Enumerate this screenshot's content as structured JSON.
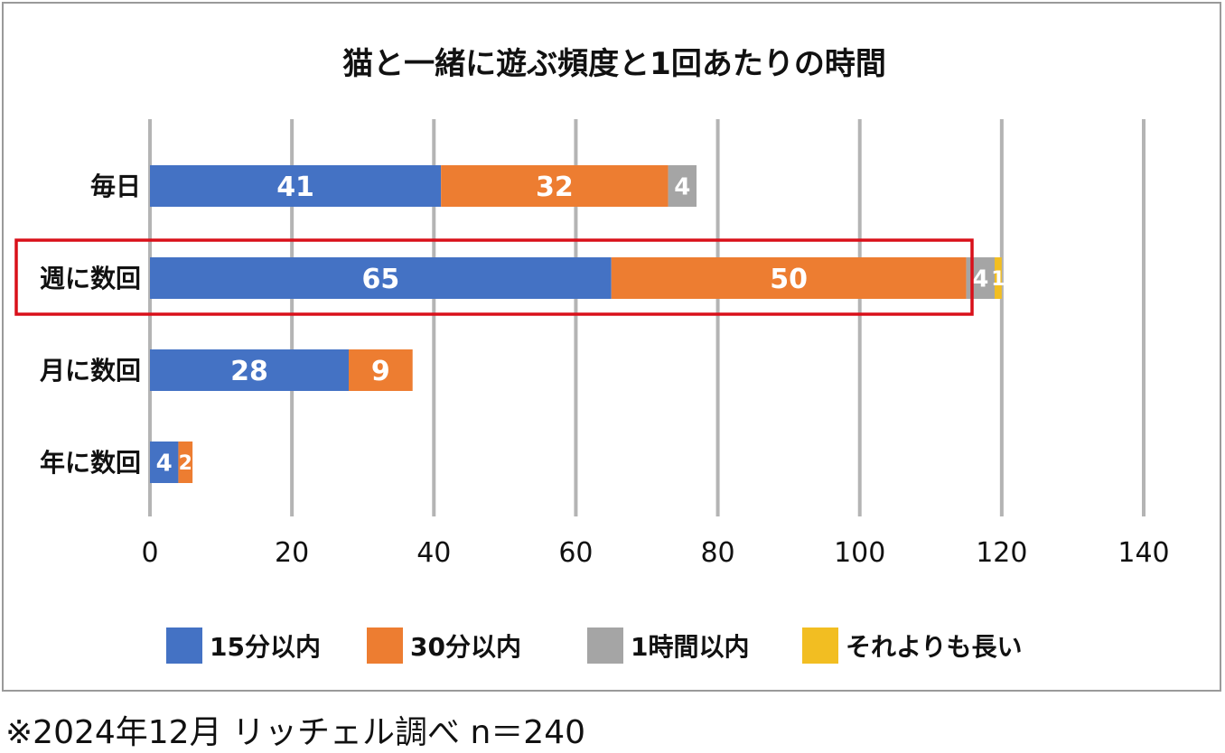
{
  "chart_data": {
    "type": "bar",
    "orientation": "horizontal",
    "stacked": true,
    "title": "猫と一緒に遊ぶ頻度と1回あたりの時間",
    "categories": [
      "毎日",
      "週に数回",
      "月に数回",
      "年に数回"
    ],
    "series": [
      {
        "name": "15分以内",
        "color": "#4472C4",
        "values": [
          41,
          65,
          28,
          4
        ],
        "labels": [
          "41",
          "65",
          "28",
          "4"
        ]
      },
      {
        "name": "30分以内",
        "color": "#ED7D31",
        "values": [
          32,
          50,
          9,
          2
        ],
        "labels": [
          "32",
          "50",
          "9",
          "2"
        ]
      },
      {
        "name": "1時間以内",
        "color": "#A5A5A5",
        "values": [
          4,
          4,
          0,
          0
        ],
        "labels": [
          "4",
          "4",
          "0",
          "0"
        ]
      },
      {
        "name": "それよりも長い",
        "color": "#F2BE22",
        "values": [
          0,
          1,
          0,
          0
        ],
        "labels": [
          "0",
          "1",
          "0",
          "0"
        ]
      }
    ],
    "xlim": [
      0,
      140
    ],
    "xticks": [
      "0",
      "20",
      "40",
      "60",
      "80",
      "100",
      "120",
      "140"
    ],
    "grid": true,
    "legend_position": "bottom",
    "highlight": {
      "category": "週に数回",
      "color": "#D9101A"
    }
  },
  "footnote": "※2024年12月 リッチェル調べ n＝240"
}
